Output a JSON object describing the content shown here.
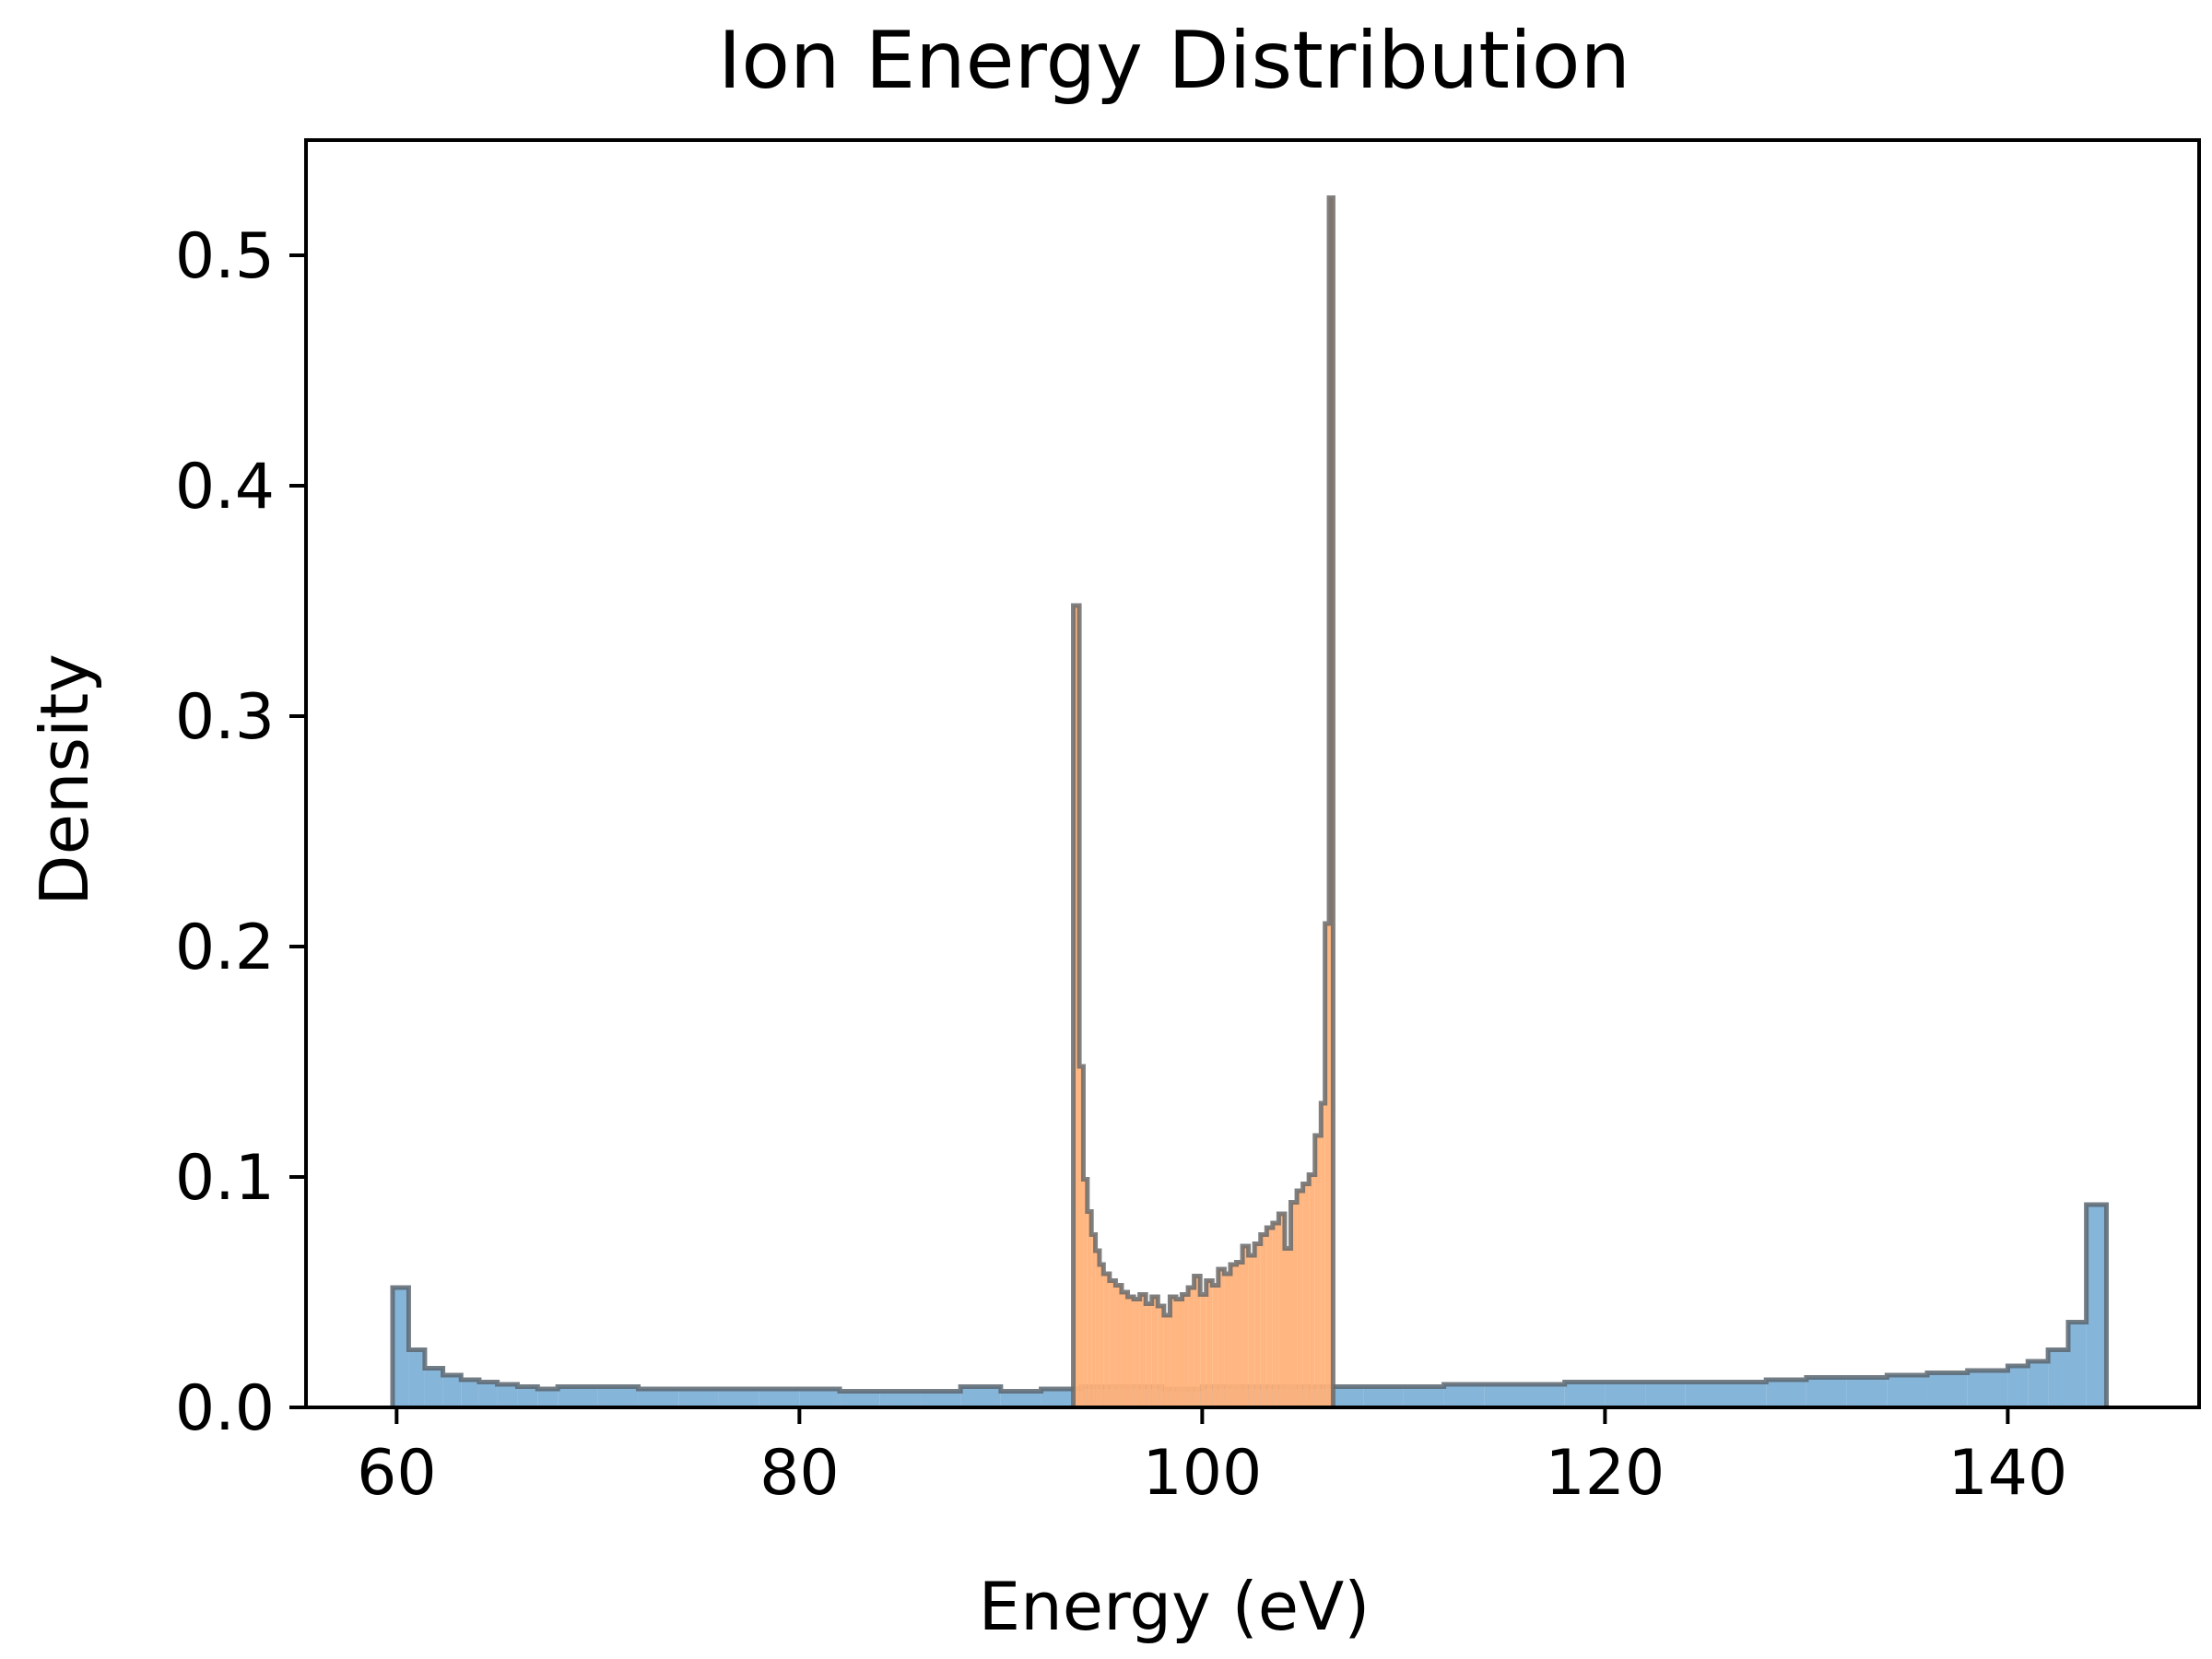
{
  "chart_data": {
    "type": "histogram",
    "title": "Ion Energy Distribution",
    "xlabel": "Energy (eV)",
    "ylabel": "Density",
    "xlim": [
      55.5,
      149.5
    ],
    "ylim": [
      0,
      0.55
    ],
    "x_ticks": [
      60,
      80,
      100,
      120,
      140
    ],
    "y_ticks": [
      0.0,
      0.1,
      0.2,
      0.3,
      0.4,
      0.5
    ],
    "x_tick_labels": [
      "60",
      "80",
      "100",
      "120",
      "140"
    ],
    "y_tick_labels": [
      "0.0",
      "0.1",
      "0.2",
      "0.3",
      "0.4",
      "0.5"
    ],
    "grid": false,
    "legend": "none",
    "series": [
      {
        "color": "#7fb1d8",
        "edge_color": "#5b6670",
        "bin_edges": [
          59.8,
          60.6,
          61.4,
          62.3,
          63.2,
          64.1,
          65.0,
          66.0,
          67.0,
          68.0,
          70.0,
          72.0,
          74.0,
          76.0,
          78.0,
          80.0,
          82.0,
          84.0,
          86.0,
          88.0,
          90.0,
          92.0,
          94.0,
          96.0,
          98.0,
          100.0,
          102.0,
          104.0,
          106.0,
          108.0,
          110.0,
          112.0,
          114.0,
          116.0,
          118.0,
          120.0,
          122.0,
          124.0,
          126.0,
          128.0,
          130.0,
          132.0,
          134.0,
          136.0,
          138.0,
          140.0,
          141.0,
          142.0,
          143.0,
          143.9,
          144.9
        ],
        "values": [
          0.052,
          0.025,
          0.017,
          0.014,
          0.012,
          0.011,
          0.01,
          0.009,
          0.008,
          0.009,
          0.009,
          0.008,
          0.008,
          0.008,
          0.008,
          0.008,
          0.007,
          0.007,
          0.007,
          0.009,
          0.007,
          0.008,
          0.009,
          0.009,
          0.008,
          0.009,
          0.009,
          0.009,
          0.009,
          0.009,
          0.009,
          0.01,
          0.01,
          0.01,
          0.011,
          0.011,
          0.011,
          0.011,
          0.011,
          0.012,
          0.013,
          0.013,
          0.014,
          0.015,
          0.016,
          0.018,
          0.02,
          0.025,
          0.037,
          0.088
        ]
      },
      {
        "color": "#ffb27a",
        "edge_color": "#6a6a6a",
        "bin_edges": [
          93.6,
          93.9,
          94.1,
          94.3,
          94.5,
          94.7,
          94.9,
          95.1,
          95.4,
          95.7,
          96.0,
          96.3,
          96.6,
          96.9,
          97.2,
          97.5,
          97.8,
          98.1,
          98.4,
          98.7,
          99.0,
          99.3,
          99.6,
          99.9,
          100.2,
          100.5,
          100.8,
          101.1,
          101.4,
          101.7,
          102.0,
          102.3,
          102.6,
          102.9,
          103.2,
          103.5,
          103.8,
          104.1,
          104.4,
          104.7,
          105.0,
          105.3,
          105.6,
          105.9,
          106.1,
          106.3,
          106.5
        ],
        "values": [
          0.348,
          0.148,
          0.099,
          0.085,
          0.075,
          0.068,
          0.062,
          0.058,
          0.055,
          0.053,
          0.05,
          0.048,
          0.047,
          0.049,
          0.045,
          0.048,
          0.044,
          0.04,
          0.048,
          0.047,
          0.049,
          0.052,
          0.057,
          0.049,
          0.055,
          0.053,
          0.06,
          0.058,
          0.062,
          0.063,
          0.07,
          0.066,
          0.071,
          0.075,
          0.078,
          0.08,
          0.084,
          0.069,
          0.089,
          0.094,
          0.097,
          0.101,
          0.118,
          0.132,
          0.21,
          0.525
        ]
      }
    ]
  }
}
